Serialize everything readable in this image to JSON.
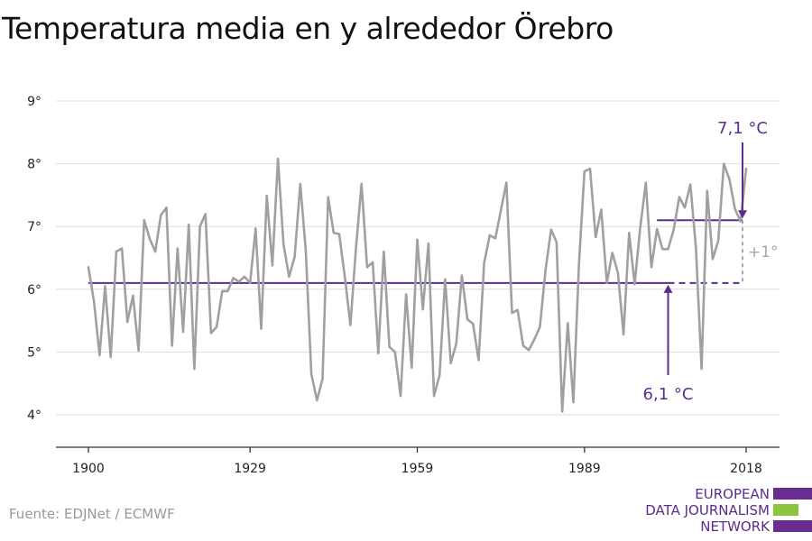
{
  "title": "Temperatura media en y alrededor Örebro",
  "source": "Fuente: EDJNet / ECMWF",
  "logo": {
    "lines": [
      "EUROPEAN",
      "DATA JOURNALISM",
      "NETWORK"
    ],
    "colors": {
      "purple": "#6a2c91",
      "green": "#8cc63f"
    }
  },
  "colors": {
    "series": "#a0a0a0",
    "accent": "#5b2d8e",
    "grid": "#dddddd",
    "axis": "#333333"
  },
  "chart_data": {
    "type": "line",
    "ylim": [
      4,
      9
    ],
    "xlim": [
      1900,
      2018
    ],
    "y_ticks": [
      4,
      5,
      6,
      7,
      8,
      9
    ],
    "y_tick_labels": [
      "4°",
      "5°",
      "6°",
      "7°",
      "8°",
      "9°"
    ],
    "x_ticks": [
      1900,
      1929,
      1959,
      1989,
      2018
    ],
    "x_tick_labels": [
      "1900",
      "1929",
      "1959",
      "1989",
      "2018"
    ],
    "grid": true,
    "series": [
      {
        "x": [
          1900,
          1901,
          1902,
          1903,
          1904,
          1905,
          1906,
          1907,
          1908,
          1909,
          1910,
          1911,
          1912,
          1913,
          1914,
          1915,
          1916,
          1917,
          1918,
          1919,
          1920,
          1921,
          1922,
          1923,
          1924,
          1925,
          1926,
          1927,
          1928,
          1929,
          1930,
          1931,
          1932,
          1933,
          1934,
          1935,
          1936,
          1937,
          1938,
          1939,
          1940,
          1941,
          1942,
          1943,
          1944,
          1945,
          1946,
          1947,
          1948,
          1949,
          1950,
          1951,
          1952,
          1953,
          1954,
          1955,
          1956,
          1957,
          1958,
          1959,
          1960,
          1961,
          1962,
          1963,
          1964,
          1965,
          1966,
          1967,
          1968,
          1969,
          1970,
          1971,
          1972,
          1973,
          1974,
          1975,
          1976,
          1977,
          1978,
          1979,
          1980,
          1981,
          1982,
          1983,
          1984,
          1985,
          1986,
          1987,
          1988,
          1989,
          1990,
          1991,
          1992,
          1993,
          1994,
          1995,
          1996,
          1997,
          1998,
          1999,
          2000,
          2001,
          2002,
          2003,
          2004,
          2005,
          2006,
          2007,
          2008,
          2009,
          2010,
          2011,
          2012,
          2013,
          2014,
          2015,
          2016,
          2017,
          2018
        ],
        "values": [
          6.35,
          5.8,
          4.95,
          6.05,
          4.92,
          6.6,
          6.65,
          5.48,
          5.9,
          5.02,
          7.1,
          6.8,
          6.6,
          7.18,
          7.3,
          5.1,
          6.65,
          5.32,
          7.03,
          4.73,
          7.0,
          7.2,
          5.3,
          5.4,
          5.97,
          5.97,
          6.18,
          6.12,
          6.2,
          6.1,
          6.97,
          5.37,
          7.49,
          6.38,
          8.08,
          6.72,
          6.2,
          6.52,
          7.68,
          6.62,
          4.65,
          4.23,
          4.57,
          7.47,
          6.9,
          6.88,
          6.2,
          5.43,
          6.65,
          7.68,
          6.35,
          6.43,
          4.98,
          6.6,
          5.08,
          5.0,
          4.3,
          5.92,
          4.75,
          6.79,
          5.68,
          6.73,
          4.3,
          4.63,
          6.16,
          4.82,
          5.13,
          6.22,
          5.52,
          5.45,
          4.87,
          6.42,
          6.86,
          6.81,
          7.26,
          7.7,
          5.62,
          5.67,
          5.1,
          5.03,
          5.2,
          5.4,
          6.3,
          6.95,
          6.75,
          4.05,
          5.46,
          4.2,
          6.4,
          7.88,
          7.92,
          6.83,
          7.27,
          6.1,
          6.58,
          6.26,
          5.28,
          6.9,
          6.08,
          6.98,
          7.7,
          6.35,
          6.96,
          6.64,
          6.64,
          6.95,
          7.47,
          7.3,
          7.67,
          6.65,
          4.73,
          7.57,
          6.48,
          6.77,
          8.0,
          7.75,
          7.28,
          7.08,
          7.92
        ]
      }
    ],
    "reference_lines": [
      {
        "label": "6,1 °C",
        "value": 6.1,
        "x_solid_end": 2004
      },
      {
        "label": "7,1 °C",
        "value": 7.1,
        "x_start": 2002
      }
    ],
    "difference_label": "+1°"
  }
}
